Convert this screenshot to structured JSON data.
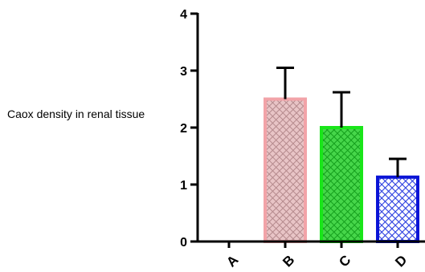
{
  "chart_data": {
    "type": "bar",
    "categories": [
      "A",
      "B",
      "C",
      "D"
    ],
    "values": [
      0,
      2.5,
      2.0,
      1.13
    ],
    "error_bars": [
      0,
      0.55,
      0.62,
      0.32
    ],
    "title": "",
    "xlabel": "",
    "ylabel": "Caox density in renal tissue",
    "ylim": [
      0,
      4
    ],
    "yticks": [
      0,
      1,
      2,
      3,
      4
    ],
    "grid": false,
    "bar_fills": [
      "#ffffff",
      "#d9a8ab",
      "#2ec43a",
      "#5a6ee8"
    ],
    "bar_edges": [
      "#000000",
      "#f2a3a8",
      "#19e619",
      "#0a14d6"
    ]
  }
}
